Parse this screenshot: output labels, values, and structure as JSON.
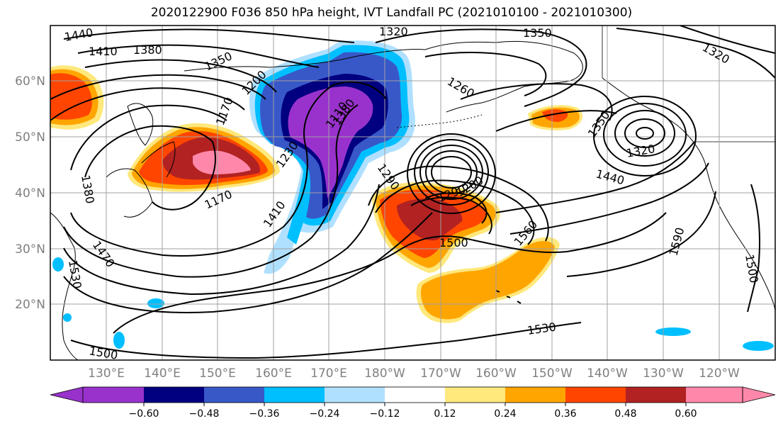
{
  "title": "2020122900 F036 850 hPa height, IVT Landfall PC (2021010100 - 2021010300)",
  "map": {
    "lon_ticks": [
      "130°E",
      "140°E",
      "150°E",
      "160°E",
      "170°E",
      "180°W",
      "170°W",
      "160°W",
      "150°W",
      "140°W",
      "130°W",
      "120°W"
    ],
    "lat_ticks": [
      "60°N",
      "50°N",
      "40°N",
      "30°N",
      "20°N"
    ],
    "grid": true
  },
  "colorbar": {
    "ticks": [
      "−0.60",
      "−0.48",
      "−0.36",
      "−0.24",
      "−0.12",
      "0.12",
      "0.24",
      "0.36",
      "0.48",
      "0.60"
    ],
    "colors": [
      "#9932cc",
      "#000080",
      "#3858c8",
      "#00bfff",
      "#b0e0ff",
      "#ffffff",
      "#ffe87c",
      "#ffa500",
      "#ff4500",
      "#b22222",
      "#ff88aa"
    ],
    "extend": "both"
  },
  "contour_labels": [
    {
      "text": "1440"
    },
    {
      "text": "1410"
    },
    {
      "text": "1380"
    },
    {
      "text": "1350"
    },
    {
      "text": "1320"
    },
    {
      "text": "1350"
    },
    {
      "text": "1320"
    },
    {
      "text": "1200"
    },
    {
      "text": "1170"
    },
    {
      "text": "1110"
    },
    {
      "text": "1380"
    },
    {
      "text": "1230"
    },
    {
      "text": "1260"
    },
    {
      "text": "1170"
    },
    {
      "text": "1290"
    },
    {
      "text": "1380"
    },
    {
      "text": "1470"
    },
    {
      "text": "1530"
    },
    {
      "text": "1410"
    },
    {
      "text": "1500"
    },
    {
      "text": "1500"
    },
    {
      "text": "1560"
    },
    {
      "text": "1590"
    },
    {
      "text": "1530"
    },
    {
      "text": "1440"
    },
    {
      "text": "1350"
    },
    {
      "text": "1320"
    },
    {
      "text": "1500"
    },
    {
      "text": "1290"
    },
    {
      "text": "1200"
    }
  ]
}
